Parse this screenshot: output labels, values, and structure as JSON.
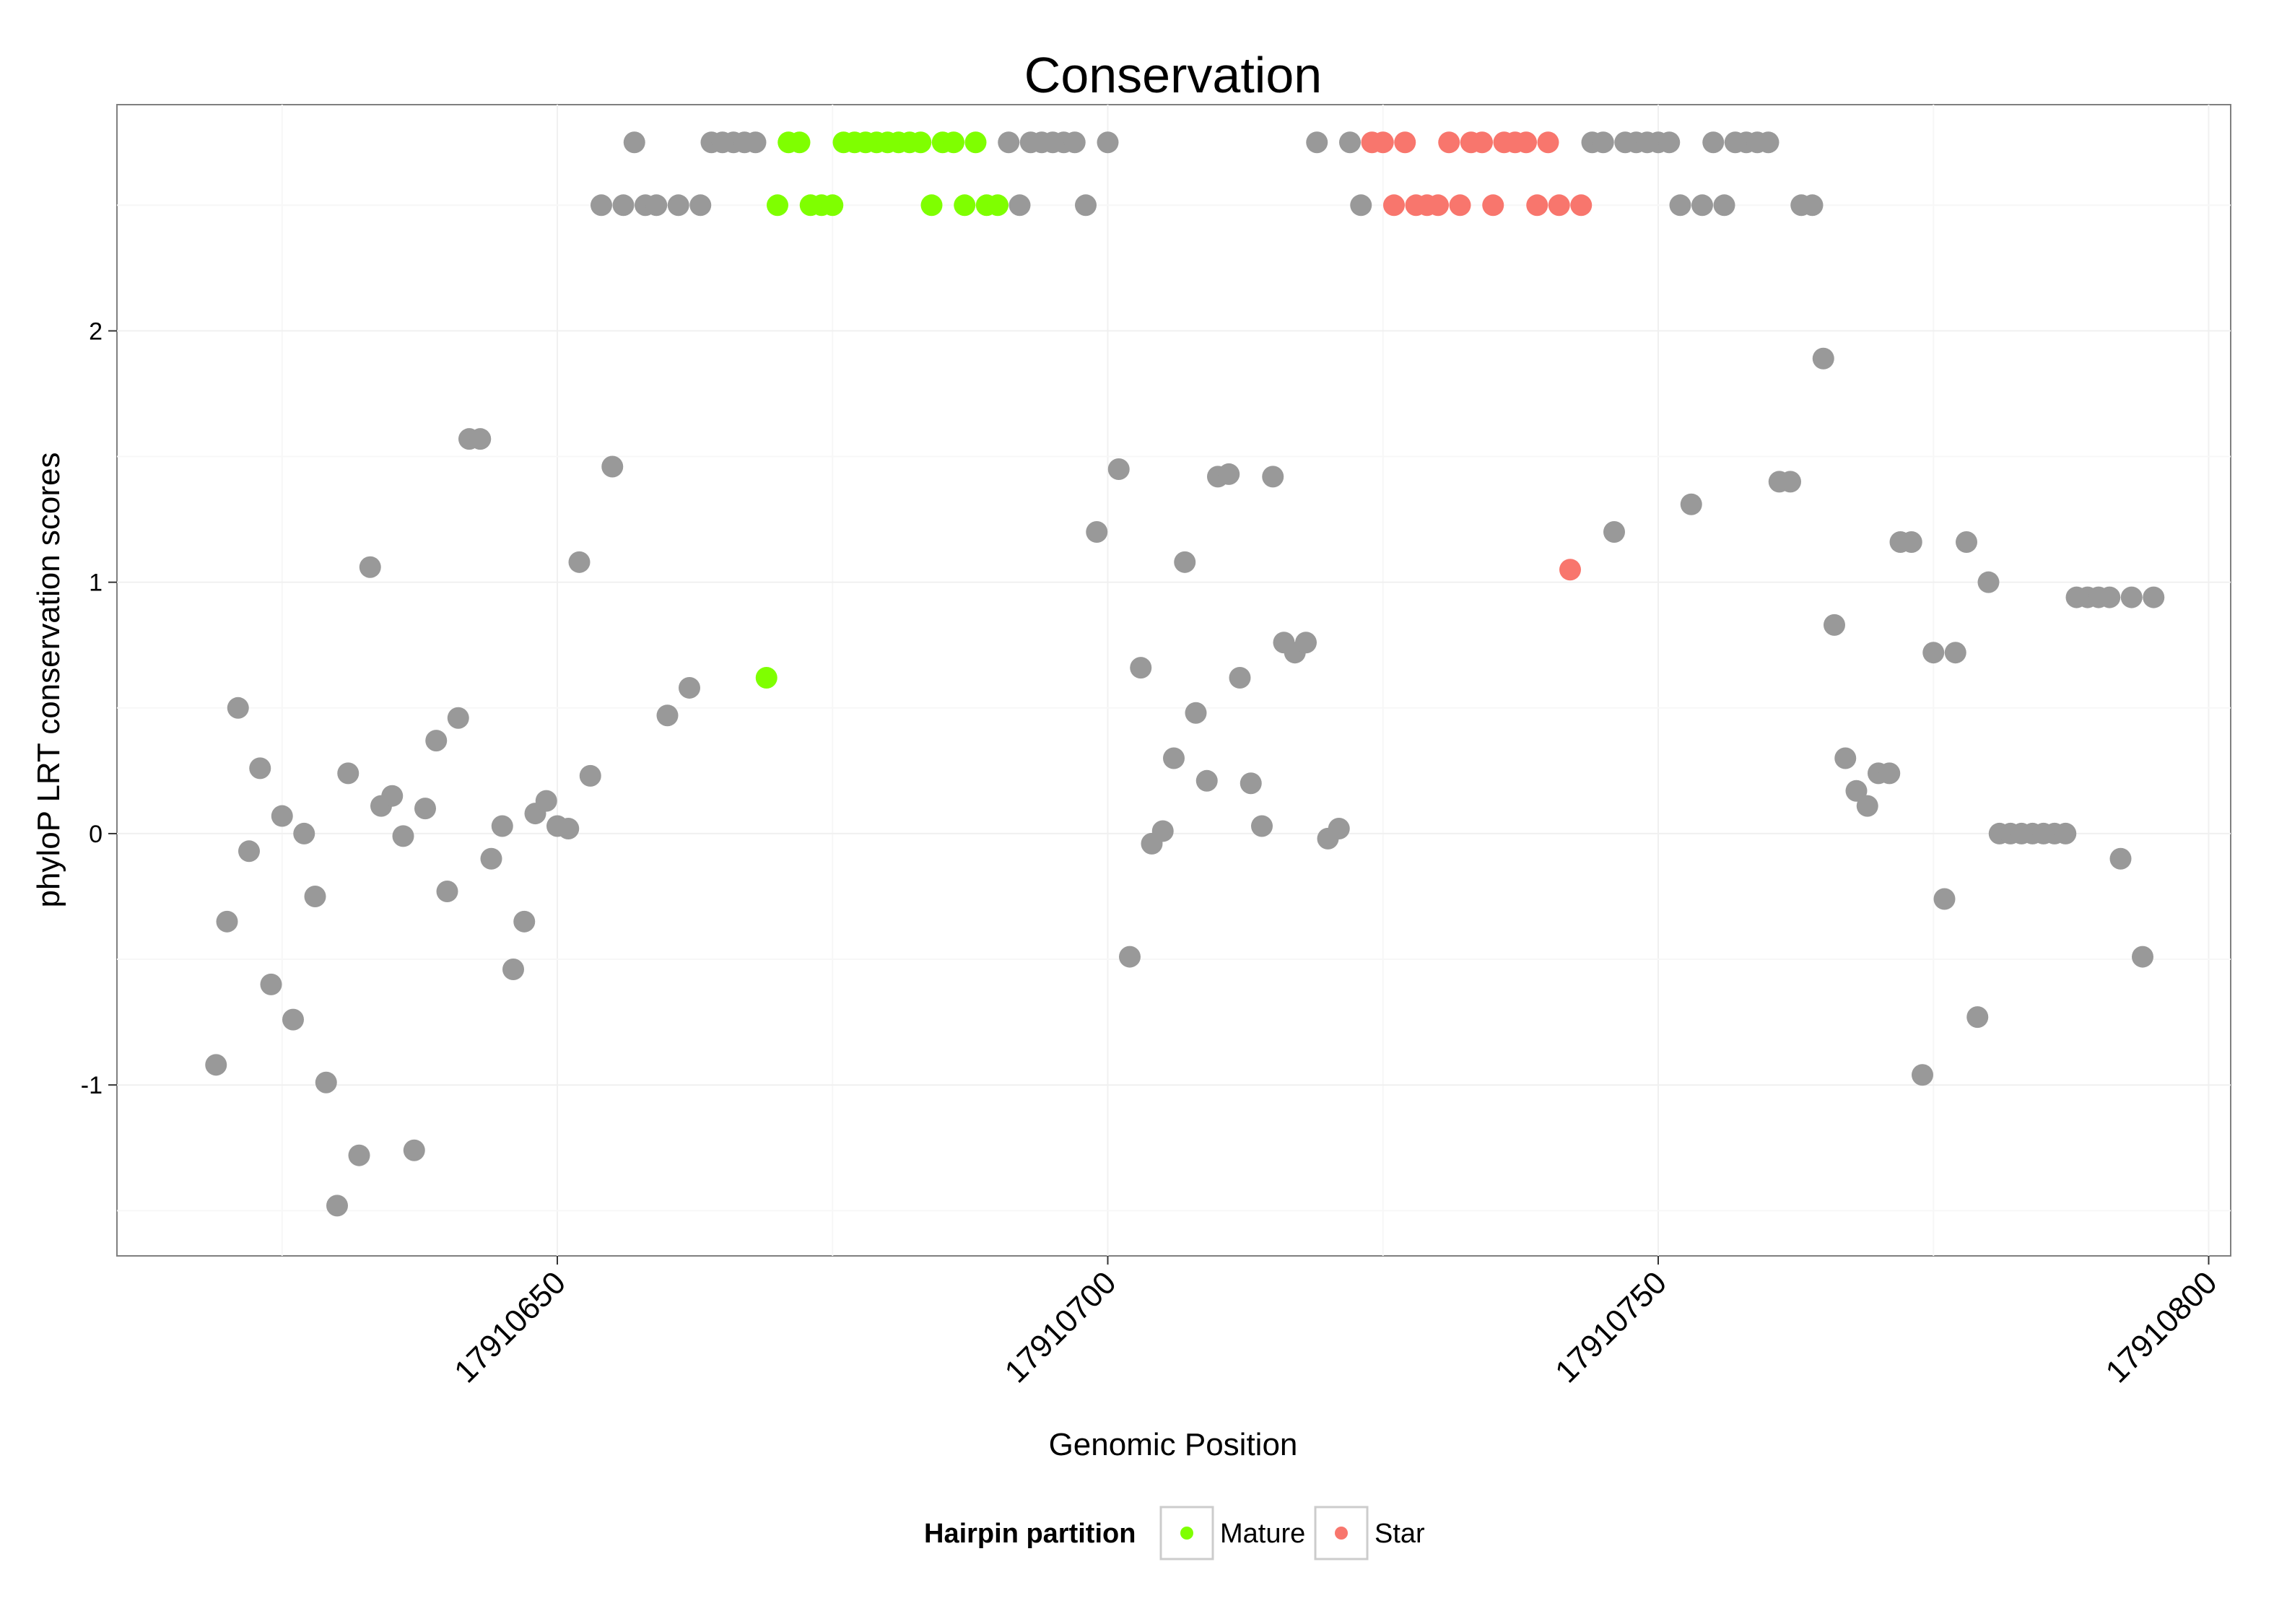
{
  "chart_data": {
    "type": "scatter",
    "title": "Conservation",
    "xlabel": "Genomic Position",
    "ylabel": "phyloP LRT conservation scores",
    "xlim": [
      17910610,
      17910802
    ],
    "ylim": [
      -1.68,
      2.9
    ],
    "x_ticks": [
      17910650,
      17910700,
      17910750,
      17910800
    ],
    "x_tick_labels": [
      "17910650",
      "17910700",
      "17910750",
      "17910800"
    ],
    "y_ticks": [
      -1,
      0,
      1,
      2
    ],
    "y_tick_labels": [
      "-1",
      "0",
      "1",
      "2"
    ],
    "legend": {
      "title": "Hairpin partition",
      "position": "bottom",
      "entries": [
        {
          "label": "Mature",
          "color": "#7FFF00"
        },
        {
          "label": "Star",
          "color": "#F8766D"
        }
      ]
    },
    "colors": {
      "other": "#999999",
      "Mature": "#7FFF00",
      "Star": "#F8766D"
    },
    "series": [
      {
        "name": "other",
        "points": [
          [
            17910619,
            -0.92
          ],
          [
            17910620,
            -0.35
          ],
          [
            17910621,
            0.5
          ],
          [
            17910622,
            -0.07
          ],
          [
            17910623,
            0.26
          ],
          [
            17910624,
            -0.6
          ],
          [
            17910625,
            0.07
          ],
          [
            17910626,
            -0.74
          ],
          [
            17910627,
            0.0
          ],
          [
            17910628,
            -0.25
          ],
          [
            17910629,
            -0.99
          ],
          [
            17910630,
            -1.48
          ],
          [
            17910631,
            0.24
          ],
          [
            17910632,
            -1.28
          ],
          [
            17910633,
            1.06
          ],
          [
            17910634,
            0.11
          ],
          [
            17910635,
            0.15
          ],
          [
            17910636,
            -0.01
          ],
          [
            17910637,
            -1.26
          ],
          [
            17910638,
            0.1
          ],
          [
            17910639,
            0.37
          ],
          [
            17910640,
            -0.23
          ],
          [
            17910641,
            0.46
          ],
          [
            17910642,
            1.57
          ],
          [
            17910643,
            1.57
          ],
          [
            17910644,
            -0.1
          ],
          [
            17910645,
            0.03
          ],
          [
            17910646,
            -0.54
          ],
          [
            17910647,
            -0.35
          ],
          [
            17910648,
            0.08
          ],
          [
            17910649,
            0.13
          ],
          [
            17910650,
            0.03
          ],
          [
            17910651,
            0.02
          ],
          [
            17910652,
            1.08
          ],
          [
            17910653,
            0.23
          ],
          [
            17910655,
            1.46
          ],
          [
            17910660,
            0.47
          ],
          [
            17910662,
            0.58
          ],
          [
            17910654,
            2.5
          ],
          [
            17910656,
            2.5
          ],
          [
            17910657,
            2.75
          ],
          [
            17910658,
            2.5
          ],
          [
            17910659,
            2.5
          ],
          [
            17910661,
            2.5
          ],
          [
            17910663,
            2.5
          ],
          [
            17910664,
            2.75
          ],
          [
            17910665,
            2.75
          ],
          [
            17910666,
            2.75
          ],
          [
            17910667,
            2.75
          ],
          [
            17910668,
            2.75
          ],
          [
            17910691,
            2.75
          ],
          [
            17910692,
            2.5
          ],
          [
            17910693,
            2.75
          ],
          [
            17910694,
            2.75
          ],
          [
            17910695,
            2.75
          ],
          [
            17910696,
            2.75
          ],
          [
            17910697,
            2.75
          ],
          [
            17910698,
            2.5
          ],
          [
            17910700,
            2.75
          ],
          [
            17910699,
            1.2
          ],
          [
            17910701,
            1.45
          ],
          [
            17910702,
            -0.49
          ],
          [
            17910703,
            0.66
          ],
          [
            17910704,
            -0.04
          ],
          [
            17910705,
            0.01
          ],
          [
            17910706,
            0.3
          ],
          [
            17910707,
            1.08
          ],
          [
            17910708,
            0.48
          ],
          [
            17910709,
            0.21
          ],
          [
            17910710,
            1.42
          ],
          [
            17910711,
            1.43
          ],
          [
            17910712,
            0.62
          ],
          [
            17910713,
            0.2
          ],
          [
            17910714,
            0.03
          ],
          [
            17910715,
            1.42
          ],
          [
            17910716,
            0.76
          ],
          [
            17910717,
            0.72
          ],
          [
            17910718,
            0.76
          ],
          [
            17910720,
            -0.02
          ],
          [
            17910721,
            0.02
          ],
          [
            17910719,
            2.75
          ],
          [
            17910722,
            2.75
          ],
          [
            17910723,
            2.5
          ],
          [
            17910744,
            2.75
          ],
          [
            17910745,
            2.75
          ],
          [
            17910747,
            2.75
          ],
          [
            17910748,
            2.75
          ],
          [
            17910749,
            2.75
          ],
          [
            17910750,
            2.75
          ],
          [
            17910751,
            2.75
          ],
          [
            17910752,
            2.5
          ],
          [
            17910754,
            2.5
          ],
          [
            17910755,
            2.75
          ],
          [
            17910756,
            2.5
          ],
          [
            17910757,
            2.75
          ],
          [
            17910758,
            2.75
          ],
          [
            17910759,
            2.75
          ],
          [
            17910760,
            2.75
          ],
          [
            17910763,
            2.5
          ],
          [
            17910764,
            2.5
          ],
          [
            17910746,
            1.2
          ],
          [
            17910753,
            1.31
          ],
          [
            17910761,
            1.4
          ],
          [
            17910762,
            1.4
          ],
          [
            17910765,
            1.89
          ],
          [
            17910766,
            0.83
          ],
          [
            17910767,
            0.3
          ],
          [
            17910768,
            0.17
          ],
          [
            17910769,
            0.11
          ],
          [
            17910770,
            0.24
          ],
          [
            17910771,
            0.24
          ],
          [
            17910772,
            1.16
          ],
          [
            17910773,
            1.16
          ],
          [
            17910774,
            -0.96
          ],
          [
            17910775,
            0.72
          ],
          [
            17910776,
            -0.26
          ],
          [
            17910777,
            0.72
          ],
          [
            17910778,
            1.16
          ],
          [
            17910779,
            -0.73
          ],
          [
            17910780,
            1.0
          ],
          [
            17910781,
            0.0
          ],
          [
            17910782,
            0.0
          ],
          [
            17910783,
            0.0
          ],
          [
            17910784,
            0.0
          ],
          [
            17910785,
            0.0
          ],
          [
            17910786,
            0.0
          ],
          [
            17910787,
            0.0
          ],
          [
            17910788,
            0.94
          ],
          [
            17910789,
            0.94
          ],
          [
            17910790,
            0.94
          ],
          [
            17910791,
            0.94
          ],
          [
            17910792,
            -0.1
          ],
          [
            17910793,
            0.94
          ],
          [
            17910794,
            -0.49
          ],
          [
            17910795,
            0.94
          ]
        ]
      },
      {
        "name": "Mature",
        "points": [
          [
            17910669,
            0.62
          ],
          [
            17910670,
            2.5
          ],
          [
            17910671,
            2.75
          ],
          [
            17910672,
            2.75
          ],
          [
            17910673,
            2.5
          ],
          [
            17910674,
            2.5
          ],
          [
            17910675,
            2.5
          ],
          [
            17910676,
            2.75
          ],
          [
            17910677,
            2.75
          ],
          [
            17910678,
            2.75
          ],
          [
            17910679,
            2.75
          ],
          [
            17910680,
            2.75
          ],
          [
            17910681,
            2.75
          ],
          [
            17910682,
            2.75
          ],
          [
            17910683,
            2.75
          ],
          [
            17910684,
            2.5
          ],
          [
            17910685,
            2.75
          ],
          [
            17910686,
            2.75
          ],
          [
            17910687,
            2.5
          ],
          [
            17910688,
            2.75
          ],
          [
            17910689,
            2.5
          ],
          [
            17910690,
            2.5
          ]
        ]
      },
      {
        "name": "Star",
        "points": [
          [
            17910724,
            2.75
          ],
          [
            17910725,
            2.75
          ],
          [
            17910726,
            2.5
          ],
          [
            17910727,
            2.75
          ],
          [
            17910728,
            2.5
          ],
          [
            17910729,
            2.5
          ],
          [
            17910730,
            2.5
          ],
          [
            17910731,
            2.75
          ],
          [
            17910732,
            2.5
          ],
          [
            17910733,
            2.75
          ],
          [
            17910734,
            2.75
          ],
          [
            17910735,
            2.5
          ],
          [
            17910736,
            2.75
          ],
          [
            17910737,
            2.75
          ],
          [
            17910738,
            2.75
          ],
          [
            17910739,
            2.5
          ],
          [
            17910740,
            2.75
          ],
          [
            17910741,
            2.5
          ],
          [
            17910742,
            1.05
          ],
          [
            17910743,
            2.5
          ]
        ]
      }
    ]
  }
}
